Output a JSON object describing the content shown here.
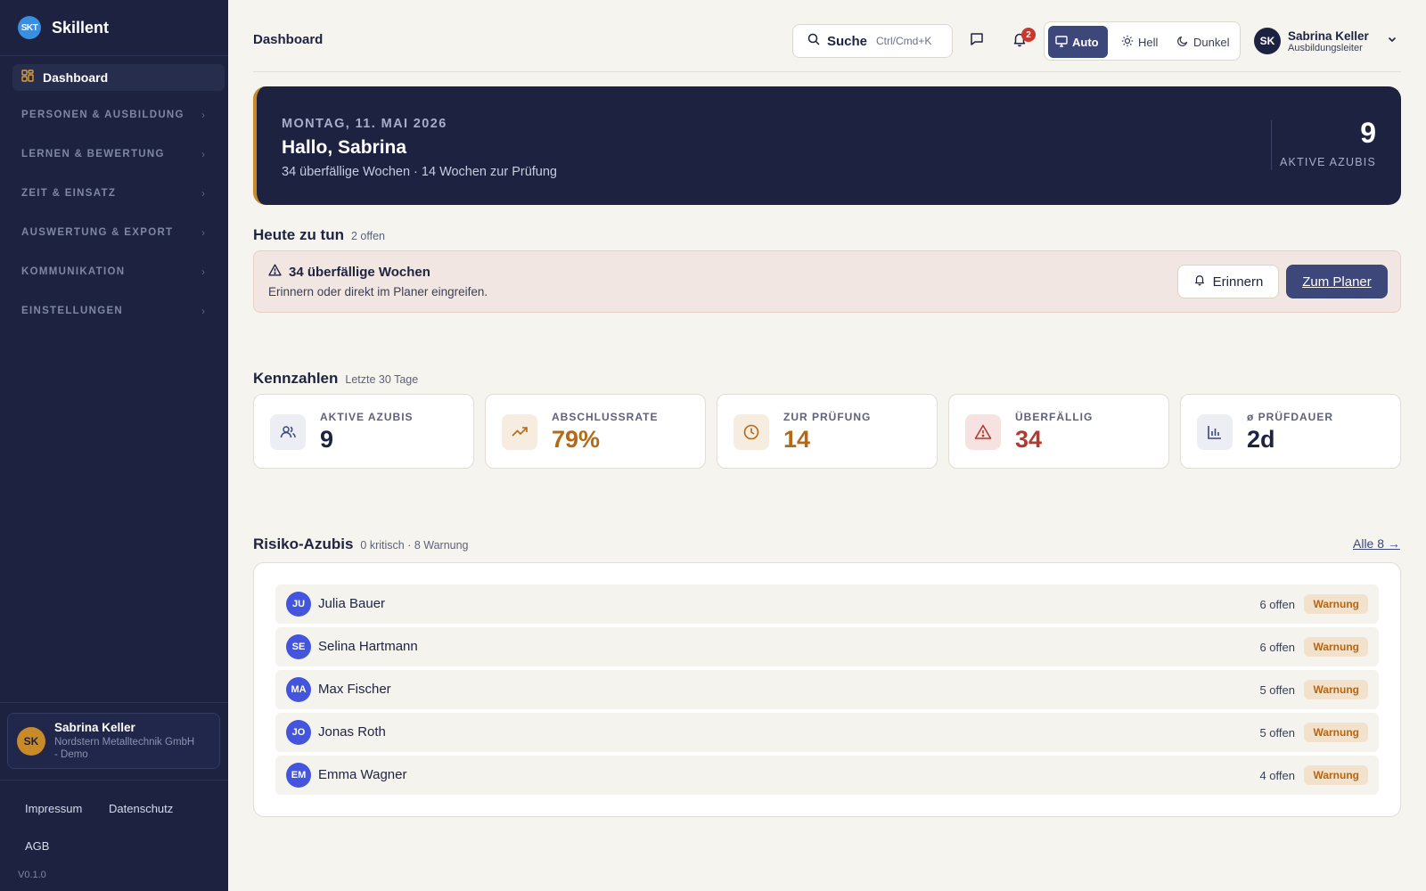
{
  "app": {
    "name": "Skillent",
    "logo_text": "SKT"
  },
  "sidebar": {
    "active_item": {
      "label": "Dashboard",
      "icon": "layout-grid-icon"
    },
    "groups": [
      {
        "label": "PERSONEN & AUSBILDUNG"
      },
      {
        "label": "LERNEN & BEWERTUNG"
      },
      {
        "label": "ZEIT & EINSATZ"
      },
      {
        "label": "AUSWERTUNG & EXPORT"
      },
      {
        "label": "KOMMUNIKATION"
      },
      {
        "label": "EINSTELLUNGEN"
      }
    ],
    "user": {
      "initials": "SK",
      "name": "Sabrina Keller",
      "org_line1": "Nordstern Metalltechnik GmbH",
      "org_line2": "- Demo"
    },
    "footer_links": {
      "impressum": "Impressum",
      "datenschutz": "Datenschutz",
      "agb": "AGB"
    },
    "version": "V0.1.0"
  },
  "header": {
    "title": "Dashboard",
    "search": {
      "label": "Suche",
      "shortcut": "Ctrl/Cmd+K"
    },
    "notifications_count": "2",
    "theme": {
      "auto": "Auto",
      "light": "Hell",
      "dark": "Dunkel",
      "selected": "auto"
    },
    "user": {
      "initials": "SK",
      "name": "Sabrina Keller",
      "role": "Ausbildungsleiter"
    }
  },
  "hero": {
    "date": "MONTAG, 11. MAI 2026",
    "greeting": "Hallo, Sabrina",
    "summary": "34 überfällige Wochen · 14 Wochen zur Prüfung",
    "stat_value": "9",
    "stat_label": "AKTIVE AZUBIS"
  },
  "todo": {
    "title": "Heute zu tun",
    "count": "2 offen",
    "alert_title": "34 überfällige Wochen",
    "alert_text": "Erinnern oder direkt im Planer eingreifen.",
    "remind_label": "Erinnern",
    "planner_label": "Zum Planer"
  },
  "kpis": {
    "title": "Kennzahlen",
    "period": "Letzte 30 Tage",
    "items": [
      {
        "label": "AKTIVE AZUBIS",
        "value": "9",
        "icon": "users-icon",
        "color": "#1e2340"
      },
      {
        "label": "ABSCHLUSSRATE",
        "value": "79%",
        "icon": "trending-up-icon",
        "color": "#b26a17"
      },
      {
        "label": "ZUR PRÜFUNG",
        "value": "14",
        "icon": "clock-icon",
        "color": "#b26a17"
      },
      {
        "label": "ÜBERFÄLLIG",
        "value": "34",
        "icon": "alert-triangle-icon",
        "color": "#b23a30"
      },
      {
        "label": "ø PRÜFDAUER",
        "value": "2d",
        "icon": "bar-chart-icon",
        "color": "#1e2340"
      }
    ]
  },
  "risk": {
    "title": "Risiko-Azubis",
    "summary": "0 kritisch · 8 Warnung",
    "all_link": "Alle 8 →",
    "rows": [
      {
        "initials": "JU",
        "name": "Julia Bauer",
        "open": "6 offen",
        "status": "Warnung"
      },
      {
        "initials": "SE",
        "name": "Selina Hartmann",
        "open": "6 offen",
        "status": "Warnung"
      },
      {
        "initials": "MA",
        "name": "Max Fischer",
        "open": "5 offen",
        "status": "Warnung"
      },
      {
        "initials": "JO",
        "name": "Jonas Roth",
        "open": "5 offen",
        "status": "Warnung"
      },
      {
        "initials": "EM",
        "name": "Emma Wagner",
        "open": "4 offen",
        "status": "Warnung"
      }
    ]
  }
}
